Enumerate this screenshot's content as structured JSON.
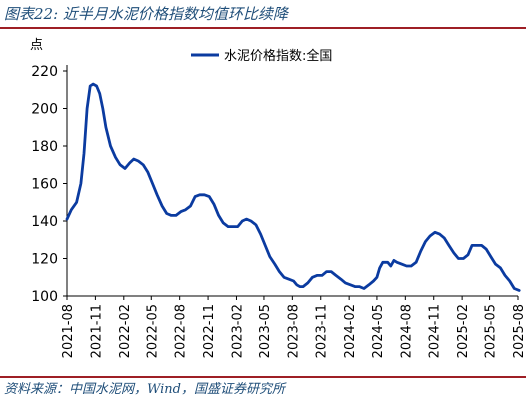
{
  "figure": {
    "title": "图表22:  近半月水泥价格指数均值环比续降",
    "source": "资料来源：中国水泥网，Wind，国盛证券研究所"
  },
  "colors": {
    "accent": "#9e1f25",
    "series": "#0b3ba0",
    "text_blue": "#1f4e79"
  },
  "chart_data": {
    "type": "line",
    "unit_label": "点",
    "legend_position": "top-center",
    "grid": false,
    "ylim": [
      100,
      220
    ],
    "y_ticks": [
      100,
      120,
      140,
      160,
      180,
      200,
      220
    ],
    "xlim": [
      "2021-08",
      "2025-08"
    ],
    "x_ticks": [
      "2021-08",
      "2021-11",
      "2022-02",
      "2022-05",
      "2022-08",
      "2022-11",
      "2023-02",
      "2023-05",
      "2023-08",
      "2023-11",
      "2024-02",
      "2024-05",
      "2024-08",
      "2024-11",
      "2025-02",
      "2025-05",
      "2025-08"
    ],
    "series": [
      {
        "name": "水泥价格指数:全国",
        "points": [
          [
            "2021-08-01",
            141
          ],
          [
            "2021-08-15",
            146
          ],
          [
            "2021-09-01",
            150
          ],
          [
            "2021-09-15",
            160
          ],
          [
            "2021-09-25",
            176
          ],
          [
            "2021-10-05",
            200
          ],
          [
            "2021-10-15",
            212
          ],
          [
            "2021-10-25",
            213
          ],
          [
            "2021-11-05",
            212
          ],
          [
            "2021-11-15",
            208
          ],
          [
            "2021-11-25",
            200
          ],
          [
            "2021-12-05",
            190
          ],
          [
            "2021-12-20",
            180
          ],
          [
            "2022-01-05",
            174
          ],
          [
            "2022-01-20",
            170
          ],
          [
            "2022-02-05",
            168
          ],
          [
            "2022-02-20",
            171
          ],
          [
            "2022-03-05",
            173
          ],
          [
            "2022-03-20",
            172
          ],
          [
            "2022-04-05",
            170
          ],
          [
            "2022-04-20",
            166
          ],
          [
            "2022-05-05",
            160
          ],
          [
            "2022-05-20",
            154
          ],
          [
            "2022-06-05",
            148
          ],
          [
            "2022-06-20",
            144
          ],
          [
            "2022-07-05",
            143
          ],
          [
            "2022-07-20",
            143
          ],
          [
            "2022-08-05",
            145
          ],
          [
            "2022-08-20",
            146
          ],
          [
            "2022-09-05",
            148
          ],
          [
            "2022-09-20",
            153
          ],
          [
            "2022-10-05",
            154
          ],
          [
            "2022-10-20",
            154
          ],
          [
            "2022-11-05",
            153
          ],
          [
            "2022-11-20",
            149
          ],
          [
            "2022-12-05",
            143
          ],
          [
            "2022-12-20",
            139
          ],
          [
            "2023-01-05",
            137
          ],
          [
            "2023-01-20",
            137
          ],
          [
            "2023-02-05",
            137
          ],
          [
            "2023-02-20",
            140
          ],
          [
            "2023-03-05",
            141
          ],
          [
            "2023-03-20",
            140
          ],
          [
            "2023-04-05",
            138
          ],
          [
            "2023-04-20",
            133
          ],
          [
            "2023-05-05",
            127
          ],
          [
            "2023-05-20",
            121
          ],
          [
            "2023-06-05",
            117
          ],
          [
            "2023-06-20",
            113
          ],
          [
            "2023-07-05",
            110
          ],
          [
            "2023-07-20",
            109
          ],
          [
            "2023-08-05",
            108
          ],
          [
            "2023-08-15",
            106
          ],
          [
            "2023-08-25",
            105
          ],
          [
            "2023-09-05",
            105
          ],
          [
            "2023-09-20",
            107
          ],
          [
            "2023-10-05",
            110
          ],
          [
            "2023-10-20",
            111
          ],
          [
            "2023-11-05",
            111
          ],
          [
            "2023-11-20",
            113
          ],
          [
            "2023-12-05",
            113
          ],
          [
            "2023-12-20",
            111
          ],
          [
            "2024-01-05",
            109
          ],
          [
            "2024-01-20",
            107
          ],
          [
            "2024-02-05",
            106
          ],
          [
            "2024-02-20",
            105
          ],
          [
            "2024-03-05",
            105
          ],
          [
            "2024-03-20",
            104
          ],
          [
            "2024-04-05",
            106
          ],
          [
            "2024-04-20",
            108
          ],
          [
            "2024-05-01",
            110
          ],
          [
            "2024-05-10",
            115
          ],
          [
            "2024-05-20",
            118
          ],
          [
            "2024-06-05",
            118
          ],
          [
            "2024-06-15",
            116
          ],
          [
            "2024-06-25",
            119
          ],
          [
            "2024-07-05",
            118
          ],
          [
            "2024-07-20",
            117
          ],
          [
            "2024-08-05",
            116
          ],
          [
            "2024-08-20",
            116
          ],
          [
            "2024-09-05",
            118
          ],
          [
            "2024-09-20",
            124
          ],
          [
            "2024-10-05",
            129
          ],
          [
            "2024-10-20",
            132
          ],
          [
            "2024-11-05",
            134
          ],
          [
            "2024-11-20",
            133
          ],
          [
            "2024-12-05",
            131
          ],
          [
            "2024-12-20",
            127
          ],
          [
            "2025-01-05",
            123
          ],
          [
            "2025-01-20",
            120
          ],
          [
            "2025-02-05",
            120
          ],
          [
            "2025-02-20",
            122
          ],
          [
            "2025-03-05",
            127
          ],
          [
            "2025-03-20",
            127
          ],
          [
            "2025-04-05",
            127
          ],
          [
            "2025-04-20",
            125
          ],
          [
            "2025-05-05",
            121
          ],
          [
            "2025-05-20",
            117
          ],
          [
            "2025-06-05",
            115
          ],
          [
            "2025-06-20",
            111
          ],
          [
            "2025-07-05",
            108
          ],
          [
            "2025-07-20",
            104
          ],
          [
            "2025-08-05",
            103
          ]
        ]
      }
    ]
  }
}
